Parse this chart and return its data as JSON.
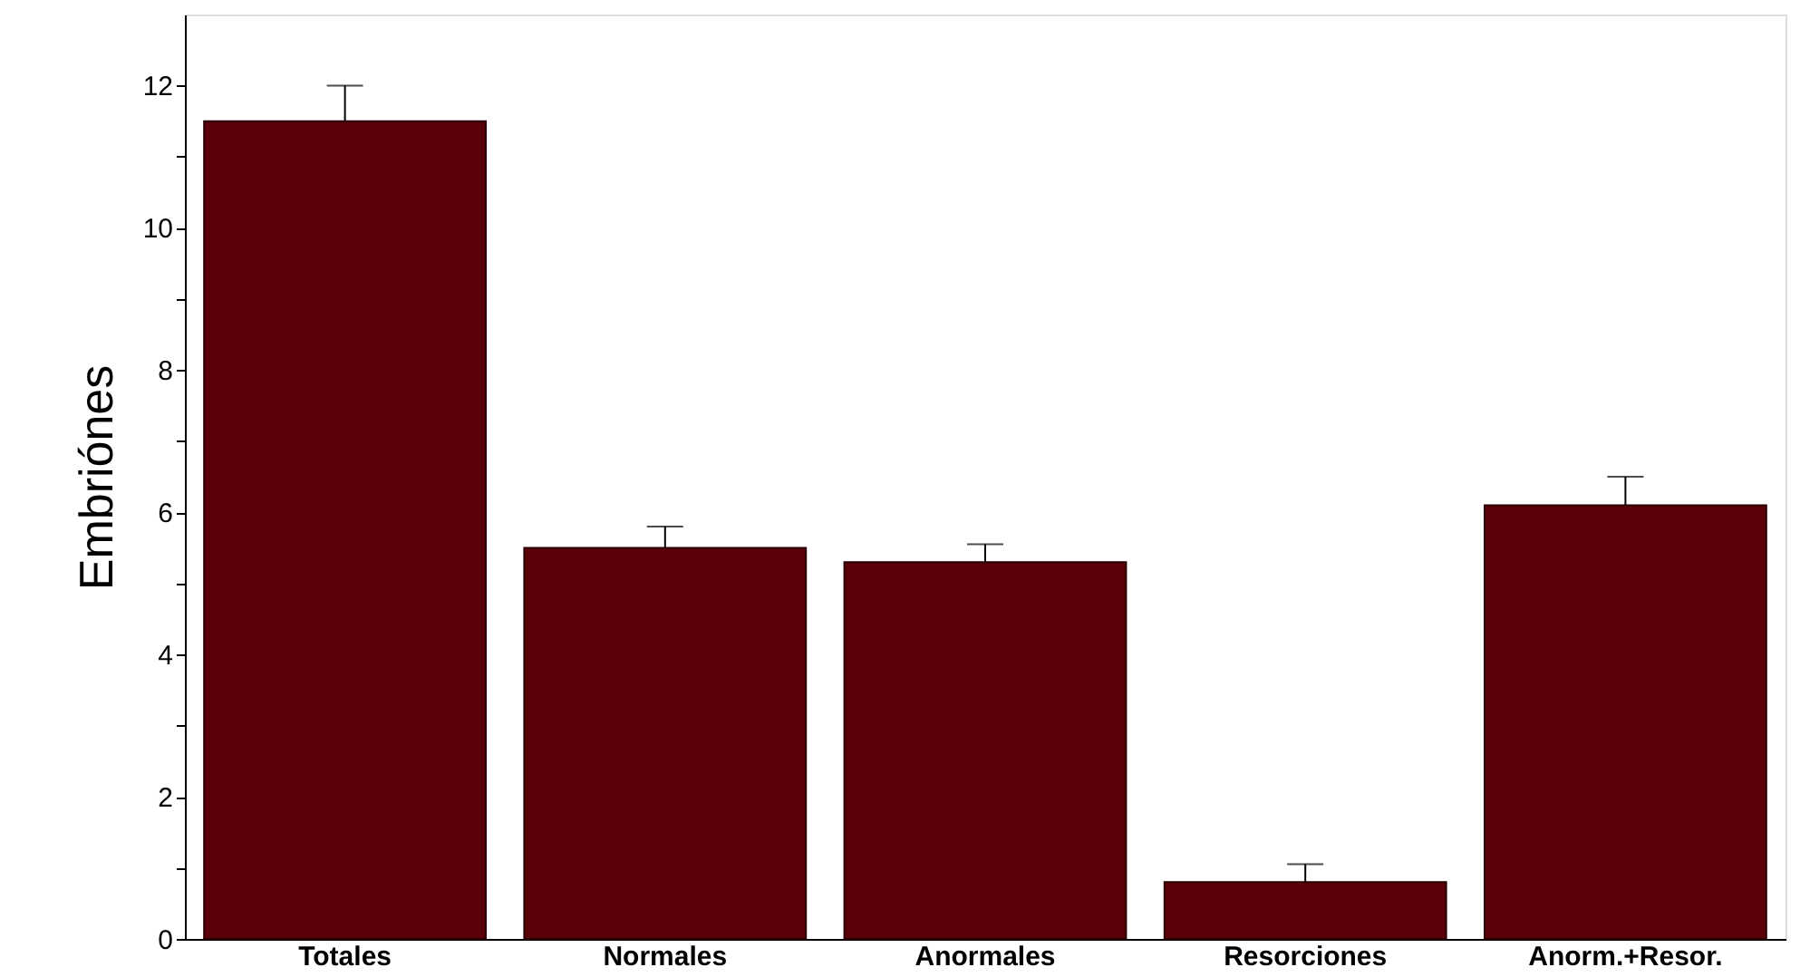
{
  "chart_data": {
    "type": "bar",
    "ylabel": "Embriónes",
    "categories": [
      "Totales",
      "Normales",
      "Anormales",
      "Resorciones",
      "Anorm.+Resor."
    ],
    "values": [
      11.5,
      5.5,
      5.3,
      0.8,
      6.1
    ],
    "errors": [
      [
        11.5,
        12.0
      ],
      [
        5.5,
        5.8
      ],
      [
        5.3,
        5.55
      ],
      [
        0.8,
        1.05
      ],
      [
        6.1,
        6.5
      ]
    ],
    "color": "#5a0008",
    "ylim": [
      0,
      13
    ],
    "yticks": [
      0,
      {
        "value": 1,
        "label": null
      },
      2,
      {
        "value": 3,
        "label": null
      },
      4,
      {
        "value": 5,
        "label": null
      },
      6,
      {
        "value": 7,
        "label": null
      },
      8,
      {
        "value": 9,
        "label": null
      },
      10,
      {
        "value": 11,
        "label": null
      },
      12
    ],
    "grid": false
  }
}
